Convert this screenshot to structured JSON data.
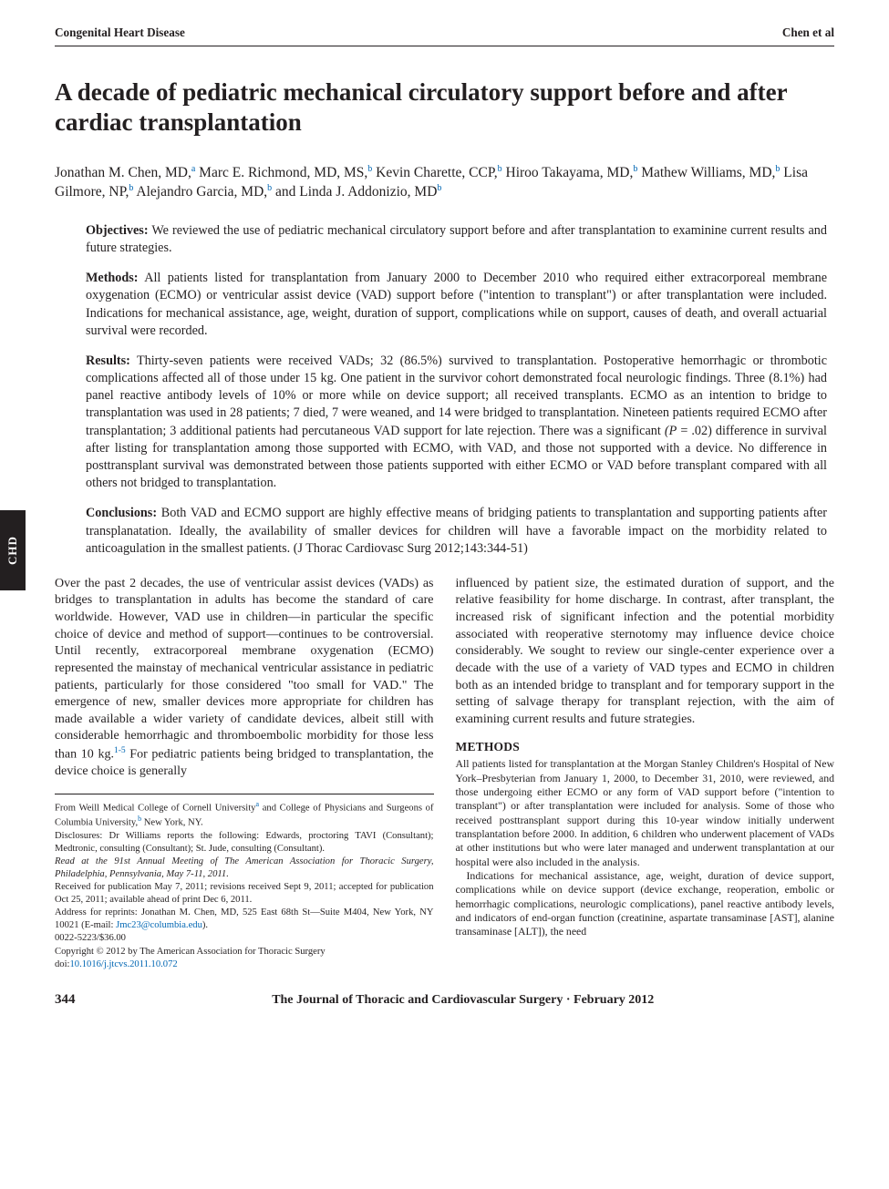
{
  "colors": {
    "text": "#231f20",
    "background": "#ffffff",
    "link": "#0066b3",
    "tab_bg": "#231f20",
    "tab_fg": "#ffffff",
    "rule": "#231f20"
  },
  "typography": {
    "family": "Times New Roman",
    "title_size_pt": 20,
    "body_size_pt": 10.5,
    "footnote_size_pt": 8
  },
  "running_head": {
    "left": "Congenital Heart Disease",
    "right": "Chen et al"
  },
  "side_tab": "CHD",
  "title": "A decade of pediatric mechanical circulatory support before and after cardiac transplantation",
  "authors_html": "Jonathan M. Chen, MD,<sup class=\"sup-link\">a</sup> Marc E. Richmond, MD, MS,<sup class=\"sup-link\">b</sup> Kevin Charette, CCP,<sup class=\"sup-link\">b</sup> Hiroo Takayama, MD,<sup class=\"sup-link\">b</sup> Mathew Williams, MD,<sup class=\"sup-link\">b</sup> Lisa Gilmore, NP,<sup class=\"sup-link\">b</sup> Alejandro Garcia, MD,<sup class=\"sup-link\">b</sup> and Linda J. Addonizio, MD<sup class=\"sup-link\">b</sup>",
  "abstract": {
    "objectives": {
      "label": "Objectives:",
      "text": "We reviewed the use of pediatric mechanical circulatory support before and after transplantation to examinine current results and future strategies."
    },
    "methods": {
      "label": "Methods:",
      "text": "All patients listed for transplantation from January 2000 to December 2010 who required either extracorporeal membrane oxygenation (ECMO) or ventricular assist device (VAD) support before (\"intention to transplant\") or after transplantation were included. Indications for mechanical assistance, age, weight, duration of support, complications while on support, causes of death, and overall actuarial survival were recorded."
    },
    "results": {
      "label": "Results:",
      "text_html": "Thirty-seven patients were received VADs; 32 (86.5%) survived to transplantation. Postoperative hemorrhagic or thrombotic complications affected all of those under 15 kg. One patient in the survivor cohort demonstrated focal neurologic findings. Three (8.1%) had panel reactive antibody levels of 10% or more while on device support; all received transplants. ECMO as an intention to bridge to transplantation was used in 28 patients; 7 died, 7 were weaned, and 14 were bridged to transplantation. Nineteen patients required ECMO after transplantation; 3 additional patients had percutaneous VAD support for late rejection. There was a significant <span class=\"ital\">(P</span> = .02) difference in survival after listing for transplantation among those supported with ECMO, with VAD, and those not supported with a device. No difference in posttransplant survival was demonstrated between those patients supported with either ECMO or VAD before transplant compared with all others not bridged to transplantation."
    },
    "conclusions": {
      "label": "Conclusions:",
      "text": "Both VAD and ECMO support are highly effective means of bridging patients to transplantation and supporting patients after transplanatation. Ideally, the availability of smaller devices for children will have a favorable impact on the morbidity related to anticoagulation in the smallest patients. (J Thorac Cardiovasc Surg 2012;143:344-51)"
    }
  },
  "body": {
    "col1_html": "Over the past 2 decades, the use of ventricular assist devices (VADs) as bridges to transplantation in adults has become the standard of care worldwide. However, VAD use in children—in particular the specific choice of device and method of support—continues to be controversial. Until recently, extracorporeal membrane oxygenation (ECMO) represented the mainstay of mechanical ventricular assistance in pediatric patients, particularly for those considered \"too small for VAD.\" The emergence of new, smaller devices more appropriate for children has made available a wider variety of candidate devices, albeit still with considerable hemorrhagic and thromboembolic morbidity for those less than 10 kg.<sup>1-5</sup> For pediatric patients being bridged to transplantation, the device choice is generally",
    "col2_intro_html": "influenced by patient size, the estimated duration of support, and the relative feasibility for home discharge. In contrast, after transplant, the increased risk of significant infection and the potential morbidity associated with reoperative sternotomy may influence device choice considerably. We sought to review our single-center experience over a decade with the use of a variety of VAD types and ECMO in children both as an intended bridge to transplant and for temporary support in the setting of salvage therapy for transplant rejection, with the aim of examining current results and future strategies.",
    "methods_head": "METHODS",
    "methods_body": "All patients listed for transplantation at the Morgan Stanley Children's Hospital of New York–Presbyterian from January 1, 2000, to December 31, 2010, were reviewed, and those undergoing either ECMO or any form of VAD support before (\"intention to transplant\") or after transplantation were included for analysis. Some of those who received posttransplant support during this 10-year window initially underwent transplantation before 2000. In addition, 6 children who underwent placement of VADs at other institutions but who were later managed and underwent transplantation at our hospital were also included in the analysis.",
    "methods_body2": "Indications for mechanical assistance, age, weight, duration of device support, complications while on device support (device exchange, reoperation, embolic or hemorrhagic complications, neurologic complications), panel reactive antibody levels, and indicators of end-organ function (creatinine, aspartate transaminase [AST], alanine transaminase [ALT]), the need"
  },
  "footnotes": {
    "from_html": "From Weill Medical College of Cornell University<sup>a</sup> and College of Physicians and Surgeons of Columbia University,<sup>b</sup> New York, NY.",
    "disclosures": "Disclosures: Dr Williams reports the following: Edwards, proctoring TAVI (Consultant); Medtronic, consulting (Consultant); St. Jude, consulting (Consultant).",
    "read_at": "Read at the 91st Annual Meeting of The American Association for Thoracic Surgery, Philadelphia, Pennsylvania, May 7-11, 2011.",
    "received": "Received for publication May 7, 2011; revisions received Sept 9, 2011; accepted for publication Oct 25, 2011; available ahead of print Dec 6, 2011.",
    "address": "Address for reprints: Jonathan M. Chen, MD, 525 East 68th St—Suite M404, New York, NY 10021 (E-mail: ",
    "email": "Jmc23@columbia.edu",
    "address_tail": ").",
    "issn": "0022-5223/$36.00",
    "copyright": "Copyright © 2012 by The American Association for Thoracic Surgery",
    "doi_label": "doi:",
    "doi": "10.1016/j.jtcvs.2011.10.072"
  },
  "footer": {
    "page": "344",
    "journal": "The Journal of Thoracic and Cardiovascular Surgery · February 2012"
  }
}
